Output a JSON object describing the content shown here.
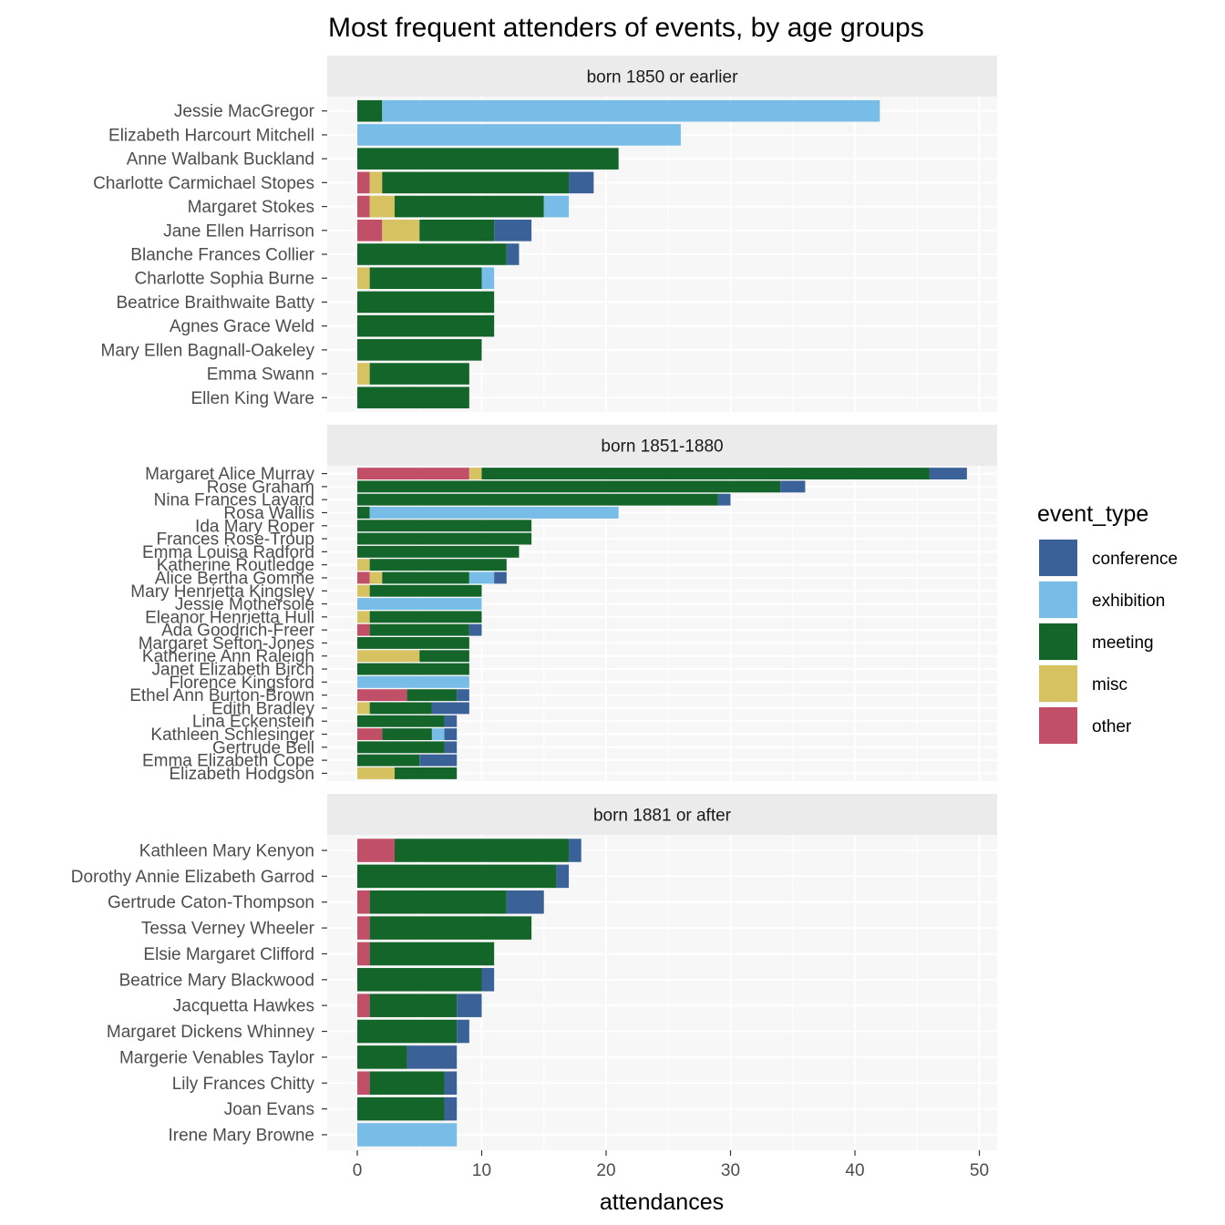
{
  "chart_data": {
    "type": "bar",
    "orientation": "horizontal",
    "stacked": true,
    "title": "Most frequent attenders of events, by age groups",
    "xlabel": "attendances",
    "ylabel": "",
    "xlim": [
      0,
      50
    ],
    "xticks": [
      0,
      10,
      20,
      30,
      40,
      50
    ],
    "grid": true,
    "legend": {
      "title": "event_type",
      "position": "right"
    },
    "stack_order": [
      "other",
      "misc",
      "meeting",
      "exhibition",
      "conference"
    ],
    "colors": {
      "conference": "#3a6299",
      "exhibition": "#78bde8",
      "meeting": "#13652a",
      "misc": "#d7c262",
      "other": "#c14f67"
    },
    "legend_entries": [
      "conference",
      "exhibition",
      "meeting",
      "misc",
      "other"
    ],
    "panels": [
      {
        "label": "born 1850 or earlier",
        "rows": [
          {
            "name": "Jessie MacGregor",
            "meeting": 2,
            "exhibition": 40
          },
          {
            "name": "Elizabeth Harcourt Mitchell",
            "exhibition": 26
          },
          {
            "name": "Anne Walbank Buckland",
            "meeting": 21
          },
          {
            "name": "Charlotte Carmichael Stopes",
            "other": 1,
            "misc": 1,
            "meeting": 15,
            "conference": 2
          },
          {
            "name": "Margaret Stokes",
            "other": 1,
            "misc": 2,
            "meeting": 12,
            "exhibition": 2
          },
          {
            "name": "Jane Ellen Harrison",
            "other": 2,
            "misc": 3,
            "meeting": 6,
            "conference": 3
          },
          {
            "name": "Blanche Frances Collier",
            "meeting": 12,
            "conference": 1
          },
          {
            "name": "Charlotte Sophia Burne",
            "misc": 1,
            "meeting": 9,
            "exhibition": 1
          },
          {
            "name": "Beatrice Braithwaite Batty",
            "meeting": 11
          },
          {
            "name": "Agnes Grace Weld",
            "meeting": 11
          },
          {
            "name": "Mary Ellen Bagnall-Oakeley",
            "meeting": 10
          },
          {
            "name": "Emma Swann",
            "misc": 1,
            "meeting": 8
          },
          {
            "name": "Ellen King Ware",
            "meeting": 9
          }
        ]
      },
      {
        "label": "born 1851-1880",
        "rows": [
          {
            "name": "Margaret Alice Murray",
            "other": 9,
            "misc": 1,
            "meeting": 36,
            "conference": 3
          },
          {
            "name": "Rose Graham",
            "meeting": 34,
            "conference": 2
          },
          {
            "name": "Nina Frances Layard",
            "meeting": 29,
            "conference": 1
          },
          {
            "name": "Rosa Wallis",
            "meeting": 1,
            "exhibition": 20
          },
          {
            "name": "Ida Mary Roper",
            "meeting": 14
          },
          {
            "name": "Frances Rose-Troup",
            "meeting": 14
          },
          {
            "name": "Emma Louisa Radford",
            "meeting": 13
          },
          {
            "name": "Katherine Routledge",
            "misc": 1,
            "meeting": 11
          },
          {
            "name": "Alice Bertha Gomme",
            "other": 1,
            "misc": 1,
            "meeting": 7,
            "exhibition": 2,
            "conference": 1
          },
          {
            "name": "Mary Henrietta Kingsley",
            "misc": 1,
            "meeting": 9
          },
          {
            "name": "Jessie Mothersole",
            "exhibition": 10
          },
          {
            "name": "Eleanor Henrietta Hull",
            "misc": 1,
            "meeting": 9
          },
          {
            "name": "Ada Goodrich-Freer",
            "other": 1,
            "meeting": 8,
            "conference": 1
          },
          {
            "name": "Margaret Sefton-Jones",
            "meeting": 9
          },
          {
            "name": "Katherine Ann Raleigh",
            "misc": 5,
            "meeting": 4
          },
          {
            "name": "Janet Elizabeth Birch",
            "meeting": 9
          },
          {
            "name": "Florence Kingsford",
            "exhibition": 9
          },
          {
            "name": "Ethel Ann Burton-Brown",
            "other": 4,
            "meeting": 4,
            "conference": 1
          },
          {
            "name": "Edith Bradley",
            "misc": 1,
            "meeting": 5,
            "conference": 3
          },
          {
            "name": "Lina Eckenstein",
            "meeting": 7,
            "conference": 1
          },
          {
            "name": "Kathleen Schlesinger",
            "other": 2,
            "meeting": 4,
            "exhibition": 1,
            "conference": 1
          },
          {
            "name": "Gertrude Bell",
            "meeting": 7,
            "conference": 1
          },
          {
            "name": "Emma Elizabeth Cope",
            "meeting": 5,
            "conference": 3
          },
          {
            "name": "Elizabeth Hodgson",
            "misc": 3,
            "meeting": 5
          }
        ]
      },
      {
        "label": "born 1881 or after",
        "rows": [
          {
            "name": "Kathleen Mary Kenyon",
            "other": 3,
            "meeting": 14,
            "conference": 1
          },
          {
            "name": "Dorothy Annie Elizabeth Garrod",
            "meeting": 16,
            "conference": 1
          },
          {
            "name": "Gertrude Caton-Thompson",
            "other": 1,
            "meeting": 11,
            "conference": 3
          },
          {
            "name": "Tessa Verney Wheeler",
            "other": 1,
            "meeting": 13
          },
          {
            "name": "Elsie Margaret Clifford",
            "other": 1,
            "meeting": 10
          },
          {
            "name": "Beatrice Mary Blackwood",
            "meeting": 10,
            "conference": 1
          },
          {
            "name": "Jacquetta Hawkes",
            "other": 1,
            "meeting": 7,
            "conference": 2
          },
          {
            "name": "Margaret Dickens Whinney",
            "meeting": 8,
            "conference": 1
          },
          {
            "name": "Margerie Venables Taylor",
            "meeting": 4,
            "conference": 4
          },
          {
            "name": "Lily Frances Chitty",
            "other": 1,
            "meeting": 6,
            "conference": 1
          },
          {
            "name": "Joan Evans",
            "meeting": 7,
            "conference": 1
          },
          {
            "name": "Irene Mary Browne",
            "exhibition": 8
          }
        ]
      }
    ]
  }
}
